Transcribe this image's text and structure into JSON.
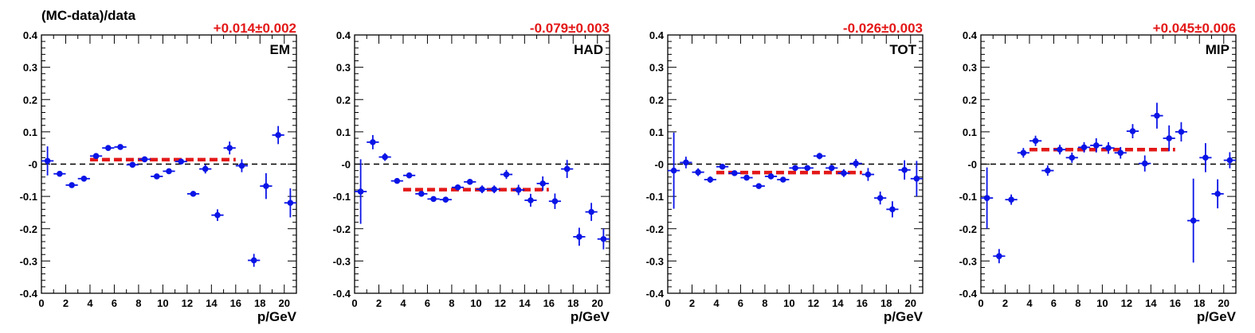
{
  "figure": {
    "ylabel": "(MC-data)/data"
  },
  "chart_data": [
    {
      "type": "scatter",
      "label": "EM",
      "fit_text": "+0.014±0.002",
      "fit_value": 0.014,
      "fit_range": [
        4,
        16
      ],
      "xlabel": "p/GeV",
      "xlim": [
        0,
        21
      ],
      "ylim": [
        -0.4,
        0.4
      ],
      "xticks": [
        0,
        2,
        4,
        6,
        8,
        10,
        12,
        14,
        16,
        18,
        20
      ],
      "yticks": [
        "-0.4",
        "-0.3",
        "-0.2",
        "-0.1",
        "-0",
        "0.1",
        "0.2",
        "0.3",
        "0.4"
      ],
      "yticks_values": [
        -0.4,
        -0.3,
        -0.2,
        -0.1,
        0,
        0.1,
        0.2,
        0.3,
        0.4
      ],
      "x": [
        0.5,
        1.5,
        2.5,
        3.5,
        4.5,
        5.5,
        6.5,
        7.5,
        8.5,
        9.5,
        10.5,
        11.5,
        12.5,
        13.5,
        14.5,
        15.5,
        16.5,
        17.5,
        18.5,
        19.5,
        20.5
      ],
      "y": [
        0.01,
        -0.03,
        -0.065,
        -0.045,
        0.025,
        0.05,
        0.053,
        -0.002,
        0.015,
        -0.038,
        -0.022,
        0.008,
        -0.092,
        -0.015,
        -0.158,
        0.05,
        -0.005,
        -0.298,
        -0.068,
        0.09,
        -0.12
      ],
      "err": [
        0.045,
        0.007,
        0.005,
        0.005,
        0.005,
        0.005,
        0.005,
        0.005,
        0.005,
        0.005,
        0.005,
        0.007,
        0.008,
        0.014,
        0.018,
        0.02,
        0.02,
        0.02,
        0.04,
        0.028,
        0.045
      ],
      "grid": false
    },
    {
      "type": "scatter",
      "label": "HAD",
      "fit_text": "-0.079±0.003",
      "fit_value": -0.079,
      "fit_range": [
        4,
        16
      ],
      "xlabel": "p/GeV",
      "xlim": [
        0,
        21
      ],
      "ylim": [
        -0.4,
        0.4
      ],
      "xticks": [
        0,
        2,
        4,
        6,
        8,
        10,
        12,
        14,
        16,
        18,
        20
      ],
      "yticks": [
        "-0.4",
        "-0.3",
        "-0.2",
        "-0.1",
        "-0",
        "0.1",
        "0.2",
        "0.3",
        "0.4"
      ],
      "yticks_values": [
        -0.4,
        -0.3,
        -0.2,
        -0.1,
        0,
        0.1,
        0.2,
        0.3,
        0.4
      ],
      "x": [
        0.5,
        1.5,
        2.5,
        3.5,
        4.5,
        5.5,
        6.5,
        7.5,
        8.5,
        9.5,
        10.5,
        11.5,
        12.5,
        13.5,
        14.5,
        15.5,
        16.5,
        17.5,
        18.5,
        19.5,
        20.5
      ],
      "y": [
        -0.085,
        0.068,
        0.022,
        -0.052,
        -0.035,
        -0.092,
        -0.108,
        -0.11,
        -0.072,
        -0.055,
        -0.078,
        -0.078,
        -0.032,
        -0.08,
        -0.112,
        -0.06,
        -0.115,
        -0.015,
        -0.225,
        -0.148,
        -0.232
      ],
      "err": [
        0.1,
        0.022,
        0.012,
        0.008,
        0.006,
        0.006,
        0.006,
        0.006,
        0.008,
        0.008,
        0.012,
        0.012,
        0.014,
        0.016,
        0.02,
        0.022,
        0.024,
        0.028,
        0.028,
        0.028,
        0.032
      ],
      "grid": false
    },
    {
      "type": "scatter",
      "label": "TOT",
      "fit_text": "-0.026±0.003",
      "fit_value": -0.026,
      "fit_range": [
        4,
        16
      ],
      "xlabel": "p/GeV",
      "xlim": [
        0,
        21
      ],
      "ylim": [
        -0.4,
        0.4
      ],
      "xticks": [
        0,
        2,
        4,
        6,
        8,
        10,
        12,
        14,
        16,
        18,
        20
      ],
      "yticks": [
        "-0.4",
        "-0.3",
        "-0.2",
        "-0.1",
        "-0",
        "0.1",
        "0.2",
        "0.3",
        "0.4"
      ],
      "yticks_values": [
        -0.4,
        -0.3,
        -0.2,
        -0.1,
        0,
        0.1,
        0.2,
        0.3,
        0.4
      ],
      "x": [
        0.5,
        1.5,
        2.5,
        3.5,
        4.5,
        5.5,
        6.5,
        7.5,
        8.5,
        9.5,
        10.5,
        11.5,
        12.5,
        13.5,
        14.5,
        15.5,
        16.5,
        17.5,
        18.5,
        19.5,
        20.5
      ],
      "y": [
        -0.02,
        0.005,
        -0.025,
        -0.048,
        -0.008,
        -0.028,
        -0.042,
        -0.068,
        -0.038,
        -0.048,
        -0.012,
        -0.012,
        0.025,
        -0.012,
        -0.028,
        0.002,
        -0.032,
        -0.105,
        -0.14,
        -0.018,
        -0.045
      ],
      "err": [
        0.118,
        0.018,
        0.012,
        0.01,
        0.006,
        0.006,
        0.006,
        0.006,
        0.006,
        0.006,
        0.008,
        0.008,
        0.01,
        0.01,
        0.012,
        0.014,
        0.02,
        0.02,
        0.025,
        0.03,
        0.055
      ],
      "grid": false
    },
    {
      "type": "scatter",
      "label": "MIP",
      "fit_text": "+0.045±0.006",
      "fit_value": 0.045,
      "fit_range": [
        4,
        16
      ],
      "xlabel": "p/GeV",
      "xlim": [
        0,
        21
      ],
      "ylim": [
        -0.4,
        0.4
      ],
      "xticks": [
        0,
        2,
        4,
        6,
        8,
        10,
        12,
        14,
        16,
        18,
        20
      ],
      "yticks": [
        "-0.4",
        "-0.3",
        "-0.2",
        "-0.1",
        "-0",
        "0.1",
        "0.2",
        "0.3",
        "0.4"
      ],
      "yticks_values": [
        -0.4,
        -0.3,
        -0.2,
        -0.1,
        0,
        0.1,
        0.2,
        0.3,
        0.4
      ],
      "x": [
        0.5,
        1.5,
        2.5,
        3.5,
        4.5,
        5.5,
        6.5,
        7.5,
        8.5,
        9.5,
        10.5,
        11.5,
        12.5,
        13.5,
        14.5,
        15.5,
        16.5,
        17.5,
        18.5,
        19.5,
        20.5
      ],
      "y": [
        -0.105,
        -0.285,
        -0.11,
        0.035,
        0.072,
        -0.02,
        0.045,
        0.02,
        0.052,
        0.058,
        0.05,
        0.035,
        0.102,
        0.002,
        0.15,
        0.08,
        0.1,
        -0.175,
        0.02,
        -0.092,
        0.012
      ],
      "err": [
        0.095,
        0.022,
        0.016,
        0.015,
        0.016,
        0.016,
        0.015,
        0.016,
        0.016,
        0.022,
        0.018,
        0.018,
        0.022,
        0.025,
        0.04,
        0.04,
        0.03,
        0.13,
        0.045,
        0.045,
        0.025
      ],
      "grid": false
    }
  ],
  "colors": {
    "marker": "#0a14e6",
    "fit_line": "#e31818",
    "fit_text": "#e31818",
    "axis": "#000000",
    "zero_line": "#000000"
  }
}
